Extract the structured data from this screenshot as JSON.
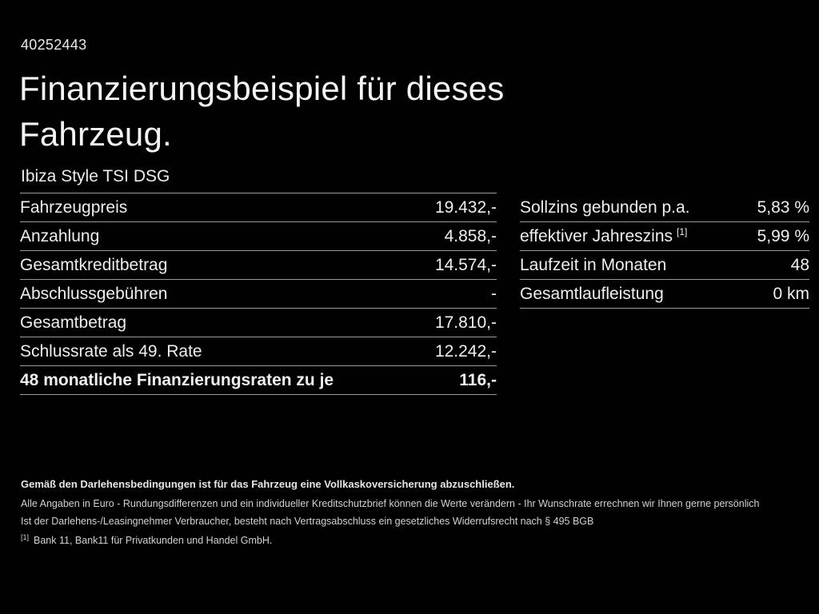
{
  "header": {
    "ref_number": "40252443",
    "title": "Finanzierungsbeispiel für dieses Fahrzeug.",
    "vehicle_model": "Ibiza Style TSI DSG"
  },
  "left_table": {
    "rows": [
      {
        "label": "Fahrzeugpreis",
        "value": "19.432,-"
      },
      {
        "label": "Anzahlung",
        "value": "4.858,-"
      },
      {
        "label": "Gesamtkreditbetrag",
        "value": "14.574,-"
      },
      {
        "label": "Abschlussgebühren",
        "value": "-"
      },
      {
        "label": "Gesamtbetrag",
        "value": "17.810,-"
      },
      {
        "label": "Schlussrate als 49. Rate",
        "value": "12.242,-"
      },
      {
        "label": "48 monatliche Finanzierungsraten zu je",
        "value": "116,-"
      }
    ]
  },
  "right_table": {
    "rows": [
      {
        "label": "Sollzins gebunden p.a.",
        "sup": "",
        "value": "5,83 %"
      },
      {
        "label": "effektiver Jahreszins",
        "sup": "[1]",
        "value": "5,99 %"
      },
      {
        "label": "Laufzeit in Monaten",
        "sup": "",
        "value": "48"
      },
      {
        "label": "Gesamtlaufleistung",
        "sup": "",
        "value": "0 km"
      }
    ]
  },
  "footer": {
    "line1": "Gemäß den Darlehensbedingungen ist für das Fahrzeug eine Vollkaskoversicherung abzuschließen.",
    "line2": "Alle Angaben in Euro - Rundungsdifferenzen und ein individueller Kreditschutzbrief können die Werte verändern - Ihr Wunschrate errechnen wir Ihnen gerne persönlich",
    "line3": "Ist der Darlehens-/Leasingnehmer Verbraucher, besteht nach Vertragsabschluss ein gesetzliches Widerrufsrecht nach § 495 BGB",
    "footnote_marker": "[1]",
    "footnote_text": "Bank 11, Bank11 für Privatkunden und Handel GmbH."
  },
  "colors": {
    "background": "#010101",
    "text": "#f1f1f1",
    "divider": "#9a9a9a"
  }
}
